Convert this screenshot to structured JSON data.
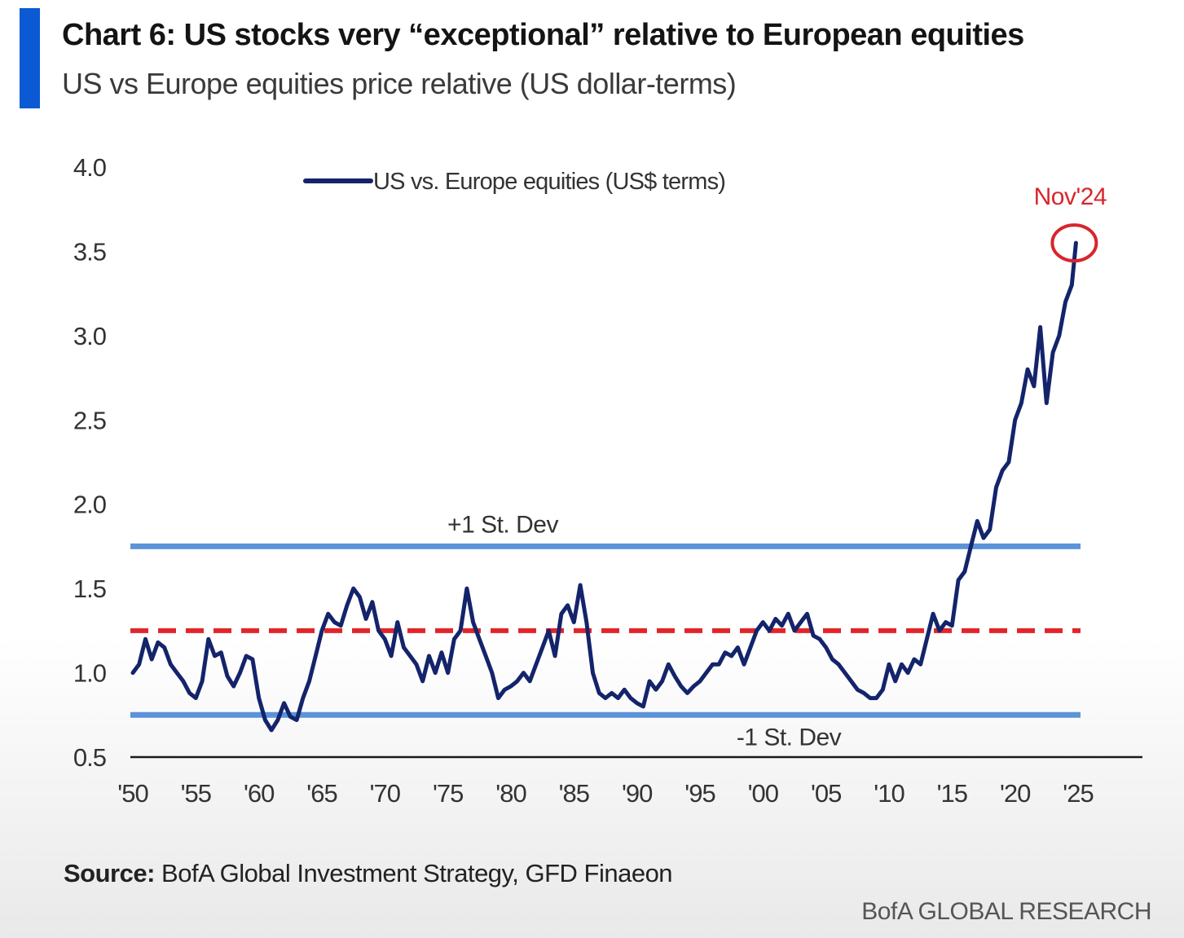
{
  "header": {
    "title": "Chart 6: US stocks very “exceptional” relative to European equities",
    "subtitle": "US vs Europe equities price relative (US dollar-terms)"
  },
  "footer": {
    "source_label": "Source:",
    "source_text": " BofA Global Investment Strategy, GFD Finaeon",
    "brand": "BofA GLOBAL RESEARCH"
  },
  "colors": {
    "accent_bar": "#0b5ad3",
    "series_line": "#14246b",
    "std_dev_lines": "#5b93d9",
    "mean_line": "#e0262b",
    "annotation": "#d7262c",
    "axis": "#1a1a1a"
  },
  "chart_data": {
    "type": "line",
    "title": "Chart 6: US stocks very “exceptional” relative to European equities",
    "subtitle": "US vs Europe equities price relative (US dollar-terms)",
    "xlabel": "",
    "ylabel": "",
    "xlim": [
      1950,
      2025
    ],
    "ylim": [
      0.5,
      4.0
    ],
    "y_ticks": [
      0.5,
      1.0,
      1.5,
      2.0,
      2.5,
      3.0,
      3.5,
      4.0
    ],
    "y_tick_labels": [
      "0.5",
      "1.0",
      "1.5",
      "2.0",
      "2.5",
      "3.0",
      "3.5",
      "4.0"
    ],
    "x_ticks": [
      1950,
      1955,
      1960,
      1965,
      1970,
      1975,
      1980,
      1985,
      1990,
      1995,
      2000,
      2005,
      2010,
      2015,
      2020,
      2025
    ],
    "x_tick_labels": [
      "'50",
      "'55",
      "'60",
      "'65",
      "'70",
      "'75",
      "'80",
      "'85",
      "'90",
      "'95",
      "'00",
      "'05",
      "'10",
      "'15",
      "'20",
      "'25"
    ],
    "grid": false,
    "legend": {
      "position": "top-center",
      "entries": [
        "US vs. Europe equities (US$ terms)"
      ]
    },
    "series": [
      {
        "name": "US vs. Europe equities (US$ terms)",
        "points": [
          [
            1950.0,
            1.0
          ],
          [
            1950.5,
            1.05
          ],
          [
            1951.0,
            1.2
          ],
          [
            1951.5,
            1.08
          ],
          [
            1952.0,
            1.18
          ],
          [
            1952.5,
            1.15
          ],
          [
            1953.0,
            1.05
          ],
          [
            1953.5,
            1.0
          ],
          [
            1954.0,
            0.95
          ],
          [
            1954.5,
            0.88
          ],
          [
            1955.0,
            0.85
          ],
          [
            1955.5,
            0.95
          ],
          [
            1956.0,
            1.2
          ],
          [
            1956.5,
            1.1
          ],
          [
            1957.0,
            1.12
          ],
          [
            1957.5,
            0.98
          ],
          [
            1958.0,
            0.92
          ],
          [
            1958.5,
            1.0
          ],
          [
            1959.0,
            1.1
          ],
          [
            1959.5,
            1.08
          ],
          [
            1960.0,
            0.85
          ],
          [
            1960.5,
            0.72
          ],
          [
            1961.0,
            0.66
          ],
          [
            1961.5,
            0.72
          ],
          [
            1962.0,
            0.82
          ],
          [
            1962.5,
            0.74
          ],
          [
            1963.0,
            0.72
          ],
          [
            1963.5,
            0.85
          ],
          [
            1964.0,
            0.95
          ],
          [
            1964.5,
            1.1
          ],
          [
            1965.0,
            1.25
          ],
          [
            1965.5,
            1.35
          ],
          [
            1966.0,
            1.3
          ],
          [
            1966.5,
            1.28
          ],
          [
            1967.0,
            1.4
          ],
          [
            1967.5,
            1.5
          ],
          [
            1968.0,
            1.45
          ],
          [
            1968.5,
            1.32
          ],
          [
            1969.0,
            1.42
          ],
          [
            1969.5,
            1.25
          ],
          [
            1970.0,
            1.2
          ],
          [
            1970.5,
            1.1
          ],
          [
            1971.0,
            1.3
          ],
          [
            1971.5,
            1.15
          ],
          [
            1972.0,
            1.1
          ],
          [
            1972.5,
            1.05
          ],
          [
            1973.0,
            0.95
          ],
          [
            1973.5,
            1.1
          ],
          [
            1974.0,
            1.0
          ],
          [
            1974.5,
            1.12
          ],
          [
            1975.0,
            1.0
          ],
          [
            1975.5,
            1.2
          ],
          [
            1976.0,
            1.25
          ],
          [
            1976.5,
            1.5
          ],
          [
            1977.0,
            1.3
          ],
          [
            1977.5,
            1.2
          ],
          [
            1978.0,
            1.1
          ],
          [
            1978.5,
            1.0
          ],
          [
            1979.0,
            0.85
          ],
          [
            1979.5,
            0.9
          ],
          [
            1980.0,
            0.92
          ],
          [
            1980.5,
            0.95
          ],
          [
            1981.0,
            1.0
          ],
          [
            1981.5,
            0.95
          ],
          [
            1982.0,
            1.05
          ],
          [
            1982.5,
            1.15
          ],
          [
            1983.0,
            1.25
          ],
          [
            1983.5,
            1.1
          ],
          [
            1984.0,
            1.35
          ],
          [
            1984.5,
            1.4
          ],
          [
            1985.0,
            1.3
          ],
          [
            1985.5,
            1.52
          ],
          [
            1986.0,
            1.3
          ],
          [
            1986.5,
            1.0
          ],
          [
            1987.0,
            0.88
          ],
          [
            1987.5,
            0.85
          ],
          [
            1988.0,
            0.88
          ],
          [
            1988.5,
            0.85
          ],
          [
            1989.0,
            0.9
          ],
          [
            1989.5,
            0.85
          ],
          [
            1990.0,
            0.82
          ],
          [
            1990.5,
            0.8
          ],
          [
            1991.0,
            0.95
          ],
          [
            1991.5,
            0.9
          ],
          [
            1992.0,
            0.95
          ],
          [
            1992.5,
            1.05
          ],
          [
            1993.0,
            0.98
          ],
          [
            1993.5,
            0.92
          ],
          [
            1994.0,
            0.88
          ],
          [
            1994.5,
            0.92
          ],
          [
            1995.0,
            0.95
          ],
          [
            1995.5,
            1.0
          ],
          [
            1996.0,
            1.05
          ],
          [
            1996.5,
            1.05
          ],
          [
            1997.0,
            1.12
          ],
          [
            1997.5,
            1.1
          ],
          [
            1998.0,
            1.15
          ],
          [
            1998.5,
            1.05
          ],
          [
            1999.0,
            1.15
          ],
          [
            1999.5,
            1.25
          ],
          [
            2000.0,
            1.3
          ],
          [
            2000.5,
            1.25
          ],
          [
            2001.0,
            1.32
          ],
          [
            2001.5,
            1.28
          ],
          [
            2002.0,
            1.35
          ],
          [
            2002.5,
            1.25
          ],
          [
            2003.0,
            1.3
          ],
          [
            2003.5,
            1.35
          ],
          [
            2004.0,
            1.22
          ],
          [
            2004.5,
            1.2
          ],
          [
            2005.0,
            1.15
          ],
          [
            2005.5,
            1.08
          ],
          [
            2006.0,
            1.05
          ],
          [
            2006.5,
            1.0
          ],
          [
            2007.0,
            0.95
          ],
          [
            2007.5,
            0.9
          ],
          [
            2008.0,
            0.88
          ],
          [
            2008.5,
            0.85
          ],
          [
            2009.0,
            0.85
          ],
          [
            2009.5,
            0.9
          ],
          [
            2010.0,
            1.05
          ],
          [
            2010.5,
            0.95
          ],
          [
            2011.0,
            1.05
          ],
          [
            2011.5,
            1.0
          ],
          [
            2012.0,
            1.08
          ],
          [
            2012.5,
            1.05
          ],
          [
            2013.0,
            1.2
          ],
          [
            2013.5,
            1.35
          ],
          [
            2014.0,
            1.25
          ],
          [
            2014.5,
            1.3
          ],
          [
            2015.0,
            1.28
          ],
          [
            2015.5,
            1.55
          ],
          [
            2016.0,
            1.6
          ],
          [
            2016.5,
            1.75
          ],
          [
            2017.0,
            1.9
          ],
          [
            2017.5,
            1.8
          ],
          [
            2018.0,
            1.85
          ],
          [
            2018.5,
            2.1
          ],
          [
            2019.0,
            2.2
          ],
          [
            2019.5,
            2.25
          ],
          [
            2020.0,
            2.5
          ],
          [
            2020.5,
            2.6
          ],
          [
            2021.0,
            2.8
          ],
          [
            2021.5,
            2.7
          ],
          [
            2022.0,
            3.05
          ],
          [
            2022.5,
            2.6
          ],
          [
            2023.0,
            2.9
          ],
          [
            2023.5,
            3.0
          ],
          [
            2024.0,
            3.2
          ],
          [
            2024.5,
            3.3
          ],
          [
            2024.83,
            3.55
          ]
        ]
      }
    ],
    "reference_lines": [
      {
        "label": "+1 St. Dev",
        "value": 1.75,
        "style": "solid"
      },
      {
        "label": "",
        "value": 1.25,
        "style": "dashed"
      },
      {
        "label": "-1 St. Dev",
        "value": 0.75,
        "style": "solid"
      }
    ],
    "annotations": [
      {
        "text": "Nov'24",
        "x": 2024.83,
        "y": 3.55
      }
    ]
  }
}
